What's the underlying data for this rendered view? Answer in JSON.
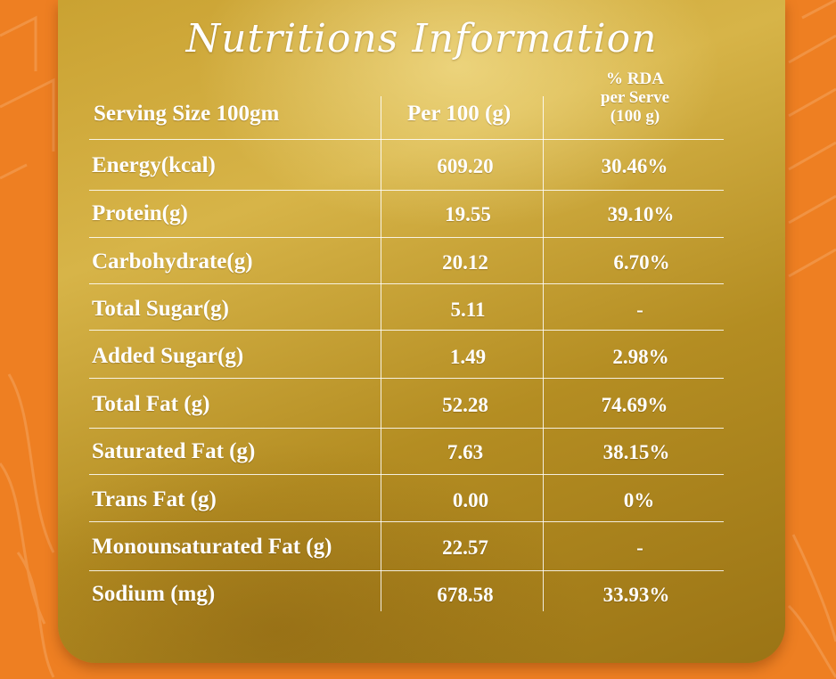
{
  "title": "Nutritions Information",
  "header": {
    "serving": "Serving Size 100gm",
    "per100": "Per 100 (g)",
    "rda_line1": "% RDA",
    "rda_line2": "per Serve",
    "rda_line3": "(100 g)"
  },
  "rows": [
    {
      "label": "Energy(kcal)",
      "per100": "609.20",
      "rda": "30.46%"
    },
    {
      "label": "Protein(g)",
      "per100": "19.55",
      "rda": "39.10%"
    },
    {
      "label": "Carbohydrate(g)",
      "per100": "20.12",
      "rda": "6.70%"
    },
    {
      "label": "Total Sugar(g)",
      "per100": "5.11",
      "rda": "-"
    },
    {
      "label": "Added Sugar(g)",
      "per100": "1.49",
      "rda": "2.98%"
    },
    {
      "label": "Total Fat (g)",
      "per100": "52.28",
      "rda": "74.69%"
    },
    {
      "label": "Saturated Fat (g)",
      "per100": "7.63",
      "rda": "38.15%"
    },
    {
      "label": "Trans Fat (g)",
      "per100": "0.00",
      "rda": "0%"
    },
    {
      "label": "Monounsaturated Fat (g)",
      "per100": "22.57",
      "rda": "-"
    },
    {
      "label": "Sodium (mg)",
      "per100": "678.58",
      "rda": "33.93%"
    }
  ],
  "colors": {
    "background": "#ee7f22",
    "panel_gold": "#c9a030",
    "text": "#ffffff"
  }
}
